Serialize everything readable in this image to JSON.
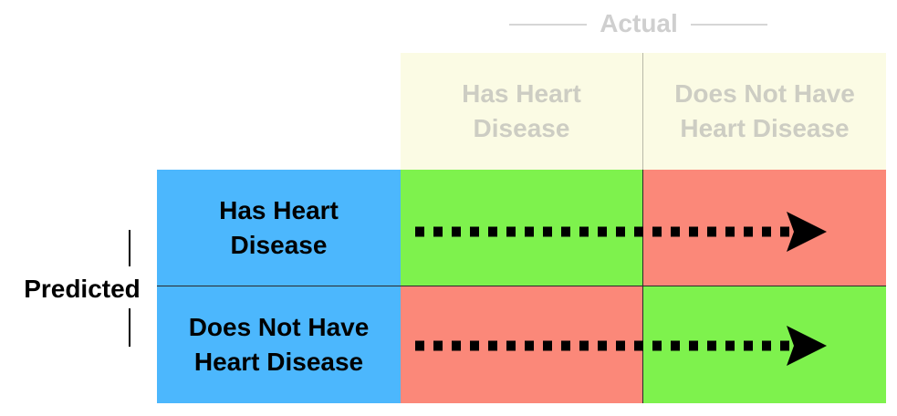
{
  "axis": {
    "actual_label": "Actual",
    "predicted_label": "Predicted"
  },
  "columns": [
    {
      "label_line1": "Has Heart",
      "label_line2": "Disease"
    },
    {
      "label_line1": "Does Not Have",
      "label_line2": "Heart Disease"
    }
  ],
  "rows": [
    {
      "label_line1": "Has Heart",
      "label_line2": "Disease"
    },
    {
      "label_line1": "Does Not Have",
      "label_line2": "Heart Disease"
    }
  ],
  "cells": [
    [
      "green",
      "red"
    ],
    [
      "red",
      "green"
    ]
  ],
  "colors": {
    "green": "#7ef24d",
    "red": "#fb8879",
    "row_header": "#4cb7fd",
    "column_header": "#fbfbe4",
    "faded_text": "#cfcfcf"
  },
  "icons": {
    "row_arrow": "dotted-right-arrow-icon"
  }
}
